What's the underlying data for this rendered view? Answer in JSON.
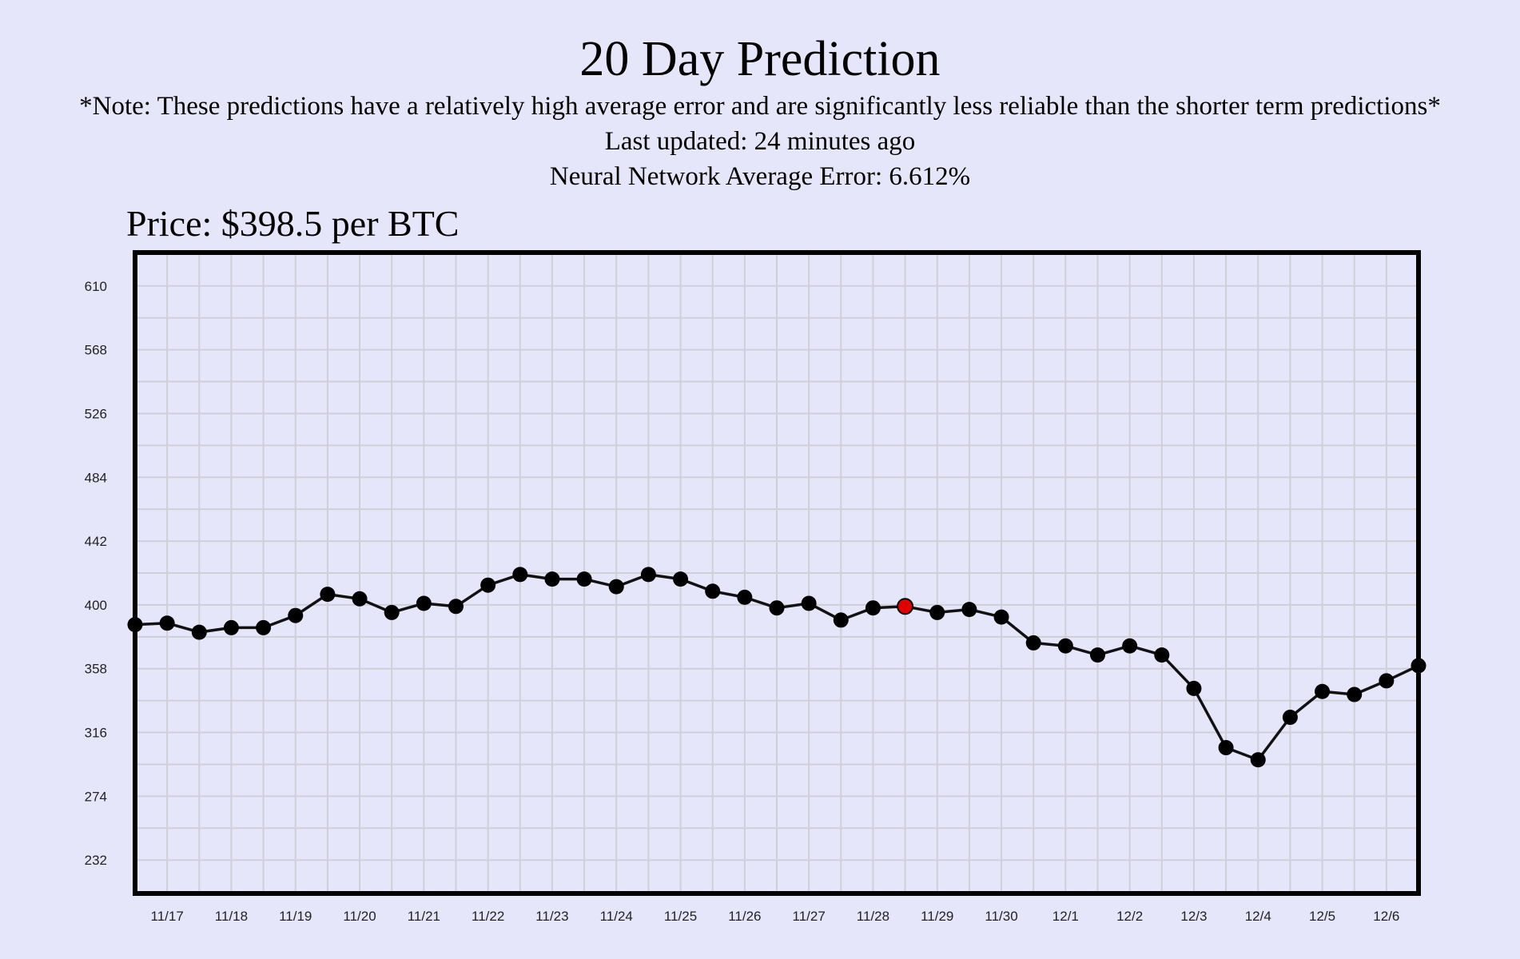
{
  "header": {
    "title": "20 Day Prediction",
    "note": "*Note: These predictions have a relatively high average error and are significantly less reliable than the shorter term predictions*",
    "last_updated": "Last updated: 24 minutes ago",
    "average_error": "Neural Network Average Error: 6.612%"
  },
  "price_label": "Price: $398.5 per BTC",
  "chart_data": {
    "type": "line",
    "title": "",
    "xlabel": "",
    "ylabel": "",
    "y_ticks": [
      232,
      274,
      316,
      358,
      400,
      442,
      484,
      526,
      568,
      610
    ],
    "x_tick_labels": [
      "11/17",
      "11/18",
      "11/19",
      "11/20",
      "11/21",
      "11/22",
      "11/23",
      "11/24",
      "11/25",
      "11/26",
      "11/27",
      "11/28",
      "11/29",
      "11/30",
      "12/1",
      "12/2",
      "12/3",
      "12/4",
      "12/5",
      "12/6"
    ],
    "x_range": [
      16.5,
      36.5
    ],
    "ylim": [
      210,
      632
    ],
    "grid": true,
    "line_color": "#111111",
    "point_color": "#000000",
    "highlight_color": "#e00000",
    "highlight_index": 24,
    "series": [
      {
        "x": [
          16.5,
          17.0,
          17.5,
          18.0,
          18.5,
          19.0,
          19.5,
          20.0,
          20.5,
          21.0,
          21.5,
          22.0,
          22.5,
          23.0,
          23.5,
          24.0,
          24.5,
          25.0,
          25.5,
          26.0,
          26.5,
          27.0,
          27.5,
          28.0,
          28.5,
          29.0,
          29.5,
          30.0,
          30.5,
          31.0,
          31.5,
          32.0,
          32.5,
          33.0,
          33.5,
          34.0,
          34.5,
          35.0,
          35.5,
          36.0,
          36.5
        ],
        "values": [
          387,
          388,
          382,
          385,
          385,
          393,
          407,
          404,
          395,
          401,
          399,
          413,
          420,
          417,
          417,
          412,
          420,
          417,
          409,
          405,
          398,
          401,
          390,
          398,
          399,
          395,
          397,
          392,
          375,
          373,
          367,
          373,
          367,
          345,
          306,
          298,
          326,
          343,
          341,
          350,
          360
        ]
      }
    ]
  }
}
